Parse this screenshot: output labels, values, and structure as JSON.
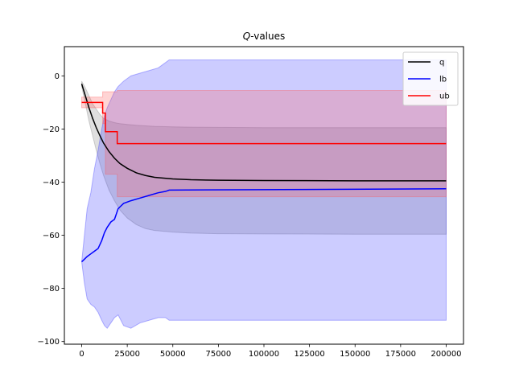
{
  "chart_data": {
    "type": "line",
    "title_italic": "Q",
    "title_rest": "-values",
    "xlim": [
      -9500,
      209500
    ],
    "ylim": [
      -101,
      11
    ],
    "xticks": [
      0,
      25000,
      50000,
      75000,
      100000,
      125000,
      150000,
      175000,
      200000
    ],
    "xtick_labels": [
      "0",
      "25000",
      "50000",
      "75000",
      "100000",
      "125000",
      "150000",
      "175000",
      "200000"
    ],
    "yticks": [
      -100,
      -80,
      -60,
      -40,
      -20,
      0
    ],
    "ytick_labels": [
      "−100",
      "−80",
      "−60",
      "−40",
      "−20",
      "0"
    ],
    "legend_position": "top-right",
    "series": [
      {
        "name": "q",
        "color": "#000000",
        "band_color": "#808080",
        "x": [
          0,
          2000,
          4000,
          6000,
          8000,
          10000,
          12000,
          15000,
          18000,
          21000,
          25000,
          30000,
          35000,
          40000,
          50000,
          60000,
          75000,
          100000,
          150000,
          200000
        ],
        "values": [
          -3,
          -7.5,
          -12,
          -16,
          -19.5,
          -22.5,
          -25.3,
          -28.5,
          -31,
          -33,
          -34.8,
          -36.5,
          -37.5,
          -38.2,
          -38.8,
          -39.1,
          -39.3,
          -39.4,
          -39.5,
          -39.5
        ],
        "band_upper": [
          -2,
          -4.5,
          -7.5,
          -10.5,
          -12.5,
          -14.5,
          -16,
          -17,
          -17.6,
          -18,
          -18.3,
          -18.6,
          -18.8,
          -19,
          -19.2,
          -19.3,
          -19.4,
          -19.5,
          -19.5,
          -19.5
        ],
        "band_lower": [
          -4,
          -10.5,
          -17,
          -22.5,
          -28,
          -33,
          -37.5,
          -43,
          -47,
          -50.5,
          -53.5,
          -56,
          -57.5,
          -58.2,
          -58.8,
          -59.2,
          -59.4,
          -59.5,
          -59.6,
          -59.6
        ]
      },
      {
        "name": "lb",
        "color": "#0000ff",
        "band_color": "#3333ff",
        "x": [
          0,
          1500,
          3000,
          5000,
          7000,
          9000,
          11000,
          12500,
          14000,
          16000,
          18000,
          20000,
          23000,
          27000,
          32000,
          37000,
          42000,
          46000,
          48000,
          200000
        ],
        "values": [
          -70,
          -69,
          -68,
          -67,
          -66,
          -65,
          -62,
          -59,
          -57,
          -55,
          -54,
          -50,
          -48,
          -47,
          -46,
          -45,
          -44,
          -43.5,
          -43,
          -42.5
        ],
        "band_upper": [
          -70,
          -60,
          -50,
          -44,
          -35,
          -28,
          -20,
          -15,
          -12,
          -9,
          -6,
          -4,
          -2,
          0,
          1,
          2,
          3,
          5,
          6,
          6
        ],
        "band_lower": [
          -70,
          -78,
          -84,
          -86,
          -87,
          -89,
          -92,
          -94,
          -95,
          -93,
          -91,
          -90,
          -94,
          -95,
          -93,
          -92,
          -91,
          -91,
          -92,
          -92
        ]
      },
      {
        "name": "ub",
        "color": "#ff0000",
        "band_color": "#ff5555",
        "x": [
          0,
          11500,
          11500,
          13000,
          13000,
          19500,
          19500,
          200000
        ],
        "values": [
          -10,
          -10,
          -14,
          -14,
          -21,
          -21,
          -25.5,
          -25.5
        ],
        "band_upper": [
          -8,
          -8,
          -6,
          -6,
          -6,
          -6,
          -5.5,
          -5.5
        ],
        "band_lower": [
          -12,
          -12,
          -18,
          -18,
          -37,
          -37,
          -45.5,
          -45.5
        ]
      }
    ]
  }
}
